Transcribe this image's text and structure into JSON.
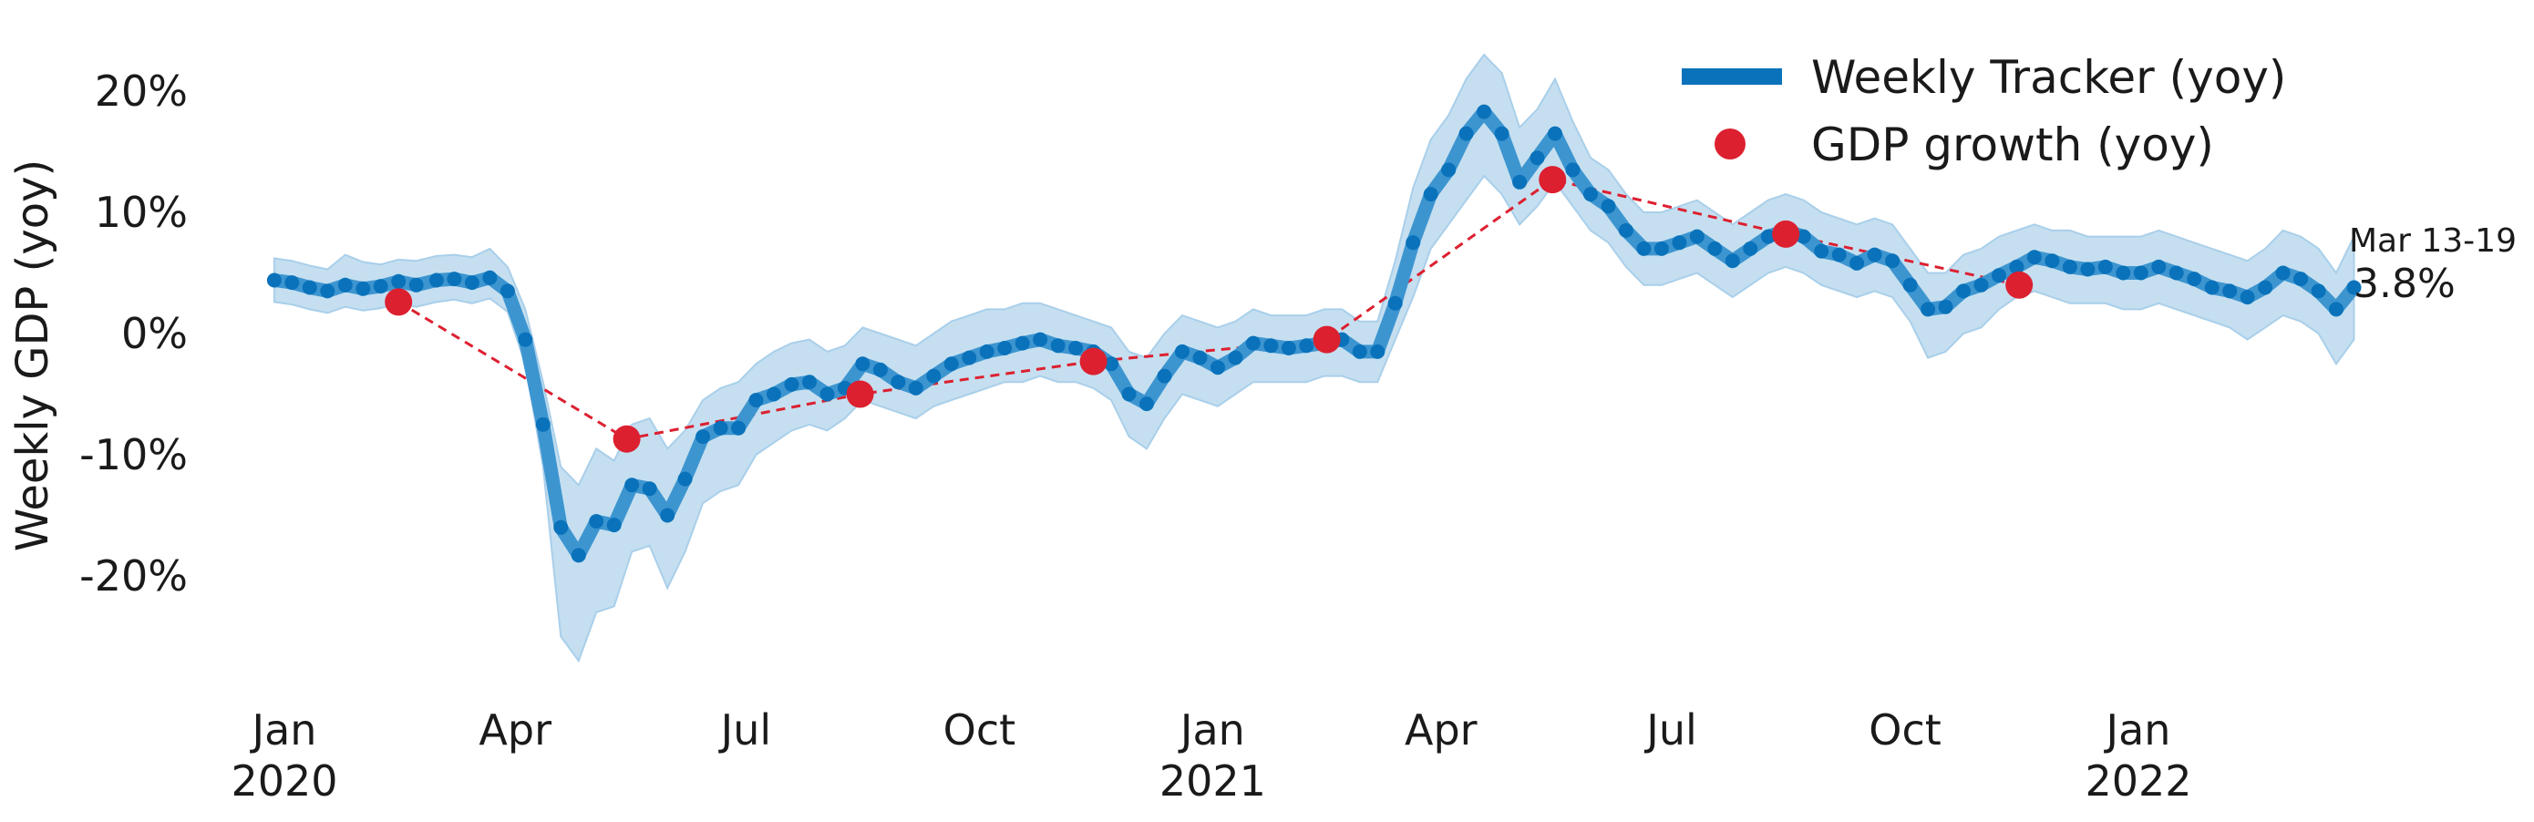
{
  "chart_data": {
    "type": "line",
    "ylabel": "Weekly GDP (yoy)",
    "ylim": [
      -30,
      24
    ],
    "y_ticks": [
      20,
      10,
      0,
      -10,
      -20
    ],
    "y_tick_labels": [
      "20%",
      "10%",
      "0%",
      "-10%",
      "-20%"
    ],
    "x_ticks": [
      {
        "date": "2020-01-01",
        "label": "Jan",
        "sublabel": "2020"
      },
      {
        "date": "2020-04-01",
        "label": "Apr",
        "sublabel": ""
      },
      {
        "date": "2020-07-01",
        "label": "Jul",
        "sublabel": ""
      },
      {
        "date": "2020-10-01",
        "label": "Oct",
        "sublabel": ""
      },
      {
        "date": "2021-01-01",
        "label": "Jan",
        "sublabel": "2021"
      },
      {
        "date": "2021-04-01",
        "label": "Apr",
        "sublabel": ""
      },
      {
        "date": "2021-07-01",
        "label": "Jul",
        "sublabel": ""
      },
      {
        "date": "2021-10-01",
        "label": "Oct",
        "sublabel": ""
      },
      {
        "date": "2022-01-01",
        "label": "Jan",
        "sublabel": "2022"
      }
    ],
    "grid": false,
    "legend_position": "top-right",
    "colors": {
      "tracker": "#0a72ba",
      "tracker_line": "#3d95d0",
      "band": "#c5dff0",
      "gdp": "#dc2030"
    },
    "series": [
      {
        "name": "Weekly Tracker (yoy)",
        "kind": "line-with-markers-and-band",
        "points": [
          [
            "2019-12-28",
            4.4,
            2.6,
            6.2
          ],
          [
            "2020-01-04",
            4.2,
            2.4,
            6.0
          ],
          [
            "2020-01-11",
            3.8,
            2.0,
            5.6
          ],
          [
            "2020-01-18",
            3.5,
            1.7,
            5.3
          ],
          [
            "2020-01-25",
            4.0,
            2.2,
            6.5
          ],
          [
            "2020-02-01",
            3.7,
            1.9,
            5.9
          ],
          [
            "2020-02-08",
            3.9,
            2.1,
            5.7
          ],
          [
            "2020-02-15",
            4.3,
            2.5,
            6.1
          ],
          [
            "2020-02-22",
            4.0,
            2.2,
            6.0
          ],
          [
            "2020-03-01",
            4.4,
            2.6,
            6.4
          ],
          [
            "2020-03-08",
            4.5,
            2.8,
            6.5
          ],
          [
            "2020-03-15",
            4.2,
            2.5,
            6.3
          ],
          [
            "2020-03-22",
            4.6,
            2.9,
            7.0
          ],
          [
            "2020-03-29",
            3.5,
            1.8,
            5.5
          ],
          [
            "2020-04-05",
            -0.5,
            -2.5,
            2.0
          ],
          [
            "2020-04-12",
            -7.5,
            -11.0,
            -4.0
          ],
          [
            "2020-04-19",
            -16.0,
            -25.0,
            -11.0
          ],
          [
            "2020-04-26",
            -18.3,
            -27.0,
            -12.5
          ],
          [
            "2020-05-03",
            -15.5,
            -23.0,
            -9.5
          ],
          [
            "2020-05-10",
            -15.8,
            -22.5,
            -10.5
          ],
          [
            "2020-05-17",
            -12.5,
            -18.0,
            -7.5
          ],
          [
            "2020-05-24",
            -12.8,
            -17.5,
            -7.0
          ],
          [
            "2020-05-31",
            -15.0,
            -21.0,
            -9.5
          ],
          [
            "2020-06-07",
            -12.0,
            -18.0,
            -8.0
          ],
          [
            "2020-06-14",
            -8.5,
            -14.0,
            -5.5
          ],
          [
            "2020-06-21",
            -7.8,
            -13.0,
            -4.5
          ],
          [
            "2020-06-28",
            -7.8,
            -12.5,
            -4.0
          ],
          [
            "2020-07-05",
            -5.5,
            -10.0,
            -2.5
          ],
          [
            "2020-07-12",
            -5.0,
            -9.0,
            -1.5
          ],
          [
            "2020-07-19",
            -4.2,
            -8.0,
            -0.8
          ],
          [
            "2020-07-26",
            -4.0,
            -7.5,
            -0.5
          ],
          [
            "2020-08-02",
            -5.0,
            -8.0,
            -1.5
          ],
          [
            "2020-08-09",
            -4.5,
            -7.0,
            -1.0
          ],
          [
            "2020-08-16",
            -2.5,
            -5.5,
            0.5
          ],
          [
            "2020-08-23",
            -3.0,
            -6.0,
            0.0
          ],
          [
            "2020-08-30",
            -4.0,
            -6.5,
            -0.5
          ],
          [
            "2020-09-06",
            -4.5,
            -7.0,
            -1.0
          ],
          [
            "2020-09-13",
            -3.5,
            -6.0,
            0.0
          ],
          [
            "2020-09-20",
            -2.5,
            -5.5,
            1.0
          ],
          [
            "2020-09-27",
            -2.0,
            -5.0,
            1.5
          ],
          [
            "2020-10-04",
            -1.5,
            -4.5,
            2.0
          ],
          [
            "2020-10-11",
            -1.2,
            -4.0,
            2.0
          ],
          [
            "2020-10-18",
            -0.8,
            -4.0,
            2.5
          ],
          [
            "2020-10-25",
            -0.5,
            -3.5,
            2.5
          ],
          [
            "2020-11-01",
            -1.0,
            -4.0,
            2.0
          ],
          [
            "2020-11-08",
            -1.2,
            -4.0,
            1.5
          ],
          [
            "2020-11-15",
            -1.5,
            -4.5,
            1.0
          ],
          [
            "2020-11-22",
            -2.5,
            -5.5,
            0.5
          ],
          [
            "2020-11-29",
            -5.0,
            -8.5,
            -1.5
          ],
          [
            "2020-12-06",
            -5.8,
            -9.5,
            -2.0
          ],
          [
            "2020-12-13",
            -3.5,
            -7.0,
            0.0
          ],
          [
            "2020-12-20",
            -1.5,
            -5.0,
            1.5
          ],
          [
            "2020-12-27",
            -2.0,
            -5.5,
            1.0
          ],
          [
            "2021-01-03",
            -2.8,
            -6.0,
            0.5
          ],
          [
            "2021-01-10",
            -2.0,
            -5.0,
            1.0
          ],
          [
            "2021-01-17",
            -0.8,
            -4.0,
            2.0
          ],
          [
            "2021-01-24",
            -1.0,
            -4.0,
            1.5
          ],
          [
            "2021-01-31",
            -1.2,
            -4.0,
            1.5
          ],
          [
            "2021-02-07",
            -1.0,
            -4.0,
            1.5
          ],
          [
            "2021-02-14",
            -0.8,
            -3.5,
            2.0
          ],
          [
            "2021-02-21",
            -0.5,
            -3.5,
            2.0
          ],
          [
            "2021-02-28",
            -1.5,
            -4.0,
            1.0
          ],
          [
            "2021-03-07",
            -1.5,
            -4.0,
            1.0
          ],
          [
            "2021-03-14",
            2.5,
            -0.5,
            6.0
          ],
          [
            "2021-03-21",
            7.5,
            3.0,
            12.0
          ],
          [
            "2021-03-28",
            11.5,
            7.0,
            16.0
          ],
          [
            "2021-04-04",
            13.5,
            9.0,
            18.0
          ],
          [
            "2021-04-11",
            16.5,
            11.0,
            21.0
          ],
          [
            "2021-04-18",
            18.3,
            13.0,
            23.0
          ],
          [
            "2021-04-25",
            16.5,
            11.5,
            21.5
          ],
          [
            "2021-05-02",
            12.5,
            9.0,
            17.0
          ],
          [
            "2021-05-09",
            14.5,
            10.5,
            18.5
          ],
          [
            "2021-05-16",
            16.5,
            12.5,
            21.0
          ],
          [
            "2021-05-23",
            13.5,
            10.5,
            17.5
          ],
          [
            "2021-05-30",
            11.5,
            8.5,
            14.5
          ],
          [
            "2021-06-06",
            10.5,
            7.5,
            13.5
          ],
          [
            "2021-06-13",
            8.5,
            5.5,
            11.5
          ],
          [
            "2021-06-20",
            7.0,
            4.0,
            10.0
          ],
          [
            "2021-06-27",
            7.0,
            4.0,
            10.0
          ],
          [
            "2021-07-04",
            7.5,
            4.5,
            10.5
          ],
          [
            "2021-07-11",
            8.0,
            5.0,
            11.0
          ],
          [
            "2021-07-18",
            7.0,
            4.0,
            10.0
          ],
          [
            "2021-07-25",
            6.0,
            3.0,
            9.0
          ],
          [
            "2021-08-01",
            7.0,
            4.0,
            10.0
          ],
          [
            "2021-08-08",
            8.0,
            5.0,
            11.0
          ],
          [
            "2021-08-15",
            8.5,
            5.5,
            11.5
          ],
          [
            "2021-08-22",
            8.0,
            5.0,
            11.0
          ],
          [
            "2021-08-29",
            6.8,
            4.0,
            10.0
          ],
          [
            "2021-09-05",
            6.5,
            3.5,
            9.5
          ],
          [
            "2021-09-12",
            5.8,
            3.0,
            9.0
          ],
          [
            "2021-09-19",
            6.5,
            3.5,
            9.5
          ],
          [
            "2021-09-26",
            6.0,
            3.0,
            9.0
          ],
          [
            "2021-10-03",
            4.0,
            1.0,
            7.0
          ],
          [
            "2021-10-10",
            2.0,
            -2.0,
            5.0
          ],
          [
            "2021-10-17",
            2.2,
            -1.5,
            5.0
          ],
          [
            "2021-10-24",
            3.5,
            0.0,
            6.5
          ],
          [
            "2021-10-31",
            4.0,
            0.5,
            7.0
          ],
          [
            "2021-11-07",
            4.8,
            2.0,
            8.0
          ],
          [
            "2021-11-14",
            5.5,
            3.0,
            8.5
          ],
          [
            "2021-11-21",
            6.3,
            3.5,
            9.0
          ],
          [
            "2021-11-28",
            6.0,
            3.0,
            8.5
          ],
          [
            "2021-12-05",
            5.5,
            2.5,
            8.5
          ],
          [
            "2021-12-12",
            5.3,
            2.5,
            8.0
          ],
          [
            "2021-12-19",
            5.5,
            2.5,
            8.0
          ],
          [
            "2021-12-26",
            5.0,
            2.0,
            8.0
          ],
          [
            "2022-01-02",
            5.0,
            2.0,
            8.0
          ],
          [
            "2022-01-09",
            5.5,
            2.5,
            8.5
          ],
          [
            "2022-01-16",
            5.0,
            2.0,
            8.0
          ],
          [
            "2022-01-23",
            4.5,
            1.5,
            7.5
          ],
          [
            "2022-01-30",
            3.8,
            1.0,
            7.0
          ],
          [
            "2022-02-06",
            3.5,
            0.5,
            6.5
          ],
          [
            "2022-02-13",
            3.0,
            -0.5,
            6.0
          ],
          [
            "2022-02-20",
            3.8,
            0.5,
            7.0
          ],
          [
            "2022-02-27",
            5.0,
            1.5,
            8.5
          ],
          [
            "2022-03-06",
            4.5,
            1.0,
            8.0
          ],
          [
            "2022-03-13",
            3.5,
            0.0,
            7.0
          ],
          [
            "2022-03-20",
            2.0,
            -2.5,
            5.0
          ],
          [
            "2022-03-27",
            3.8,
            -0.5,
            8.0
          ]
        ]
      },
      {
        "name": "GDP growth (yoy)",
        "kind": "markers-with-dashed-line",
        "points": [
          [
            "2020-02-15",
            2.6
          ],
          [
            "2020-05-15",
            -8.7
          ],
          [
            "2020-08-15",
            -5.0
          ],
          [
            "2020-11-15",
            -2.3
          ],
          [
            "2021-02-15",
            -0.5
          ],
          [
            "2021-05-15",
            12.7
          ],
          [
            "2021-08-15",
            8.2
          ],
          [
            "2021-11-15",
            4.0
          ]
        ]
      }
    ],
    "annotation": {
      "date_text": "Mar 13-19",
      "value_text": "3.8%"
    }
  }
}
